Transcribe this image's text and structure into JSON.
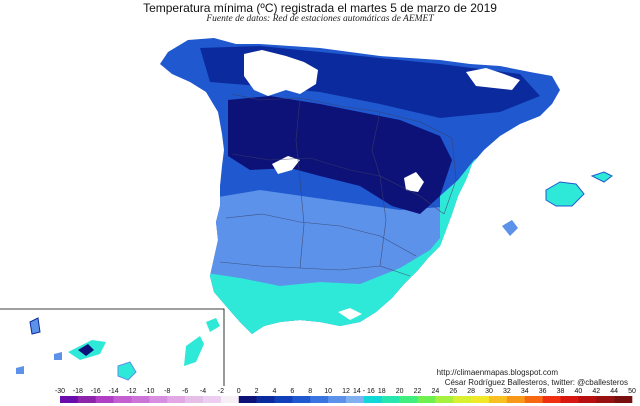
{
  "title": "Temperatura mínima (ºC) registrada el martes 5 de marzo de 2019",
  "subtitle": "Fuente de datos: Red de estaciones automáticas de AEMET",
  "credits": {
    "url": "http://climaenmapas.blogspot.com",
    "author": "César Rodríguez Ballesteros, twitter: @cballesteros"
  },
  "legend": {
    "labels": [
      "-30",
      "-18",
      "-16",
      "-14",
      "-12",
      "-10",
      "-8",
      "-6",
      "-4",
      "-2",
      "0",
      "2",
      "4",
      "6",
      "8",
      "10",
      "12",
      "14 - 16",
      "18",
      "20",
      "22",
      "24",
      "26",
      "28",
      "30",
      "32",
      "34",
      "36",
      "38",
      "40",
      "42",
      "44",
      "50"
    ],
    "colors": [
      "#6a0dad",
      "#8e24aa",
      "#b03fc6",
      "#c35fd1",
      "#cc74d8",
      "#d98fe0",
      "#e2a8e6",
      "#e6bfe9",
      "#eccff0",
      "#f6f0f6",
      "#0d1278",
      "#0b2a9e",
      "#1240b8",
      "#1f58cf",
      "#3a74e0",
      "#5c92ea",
      "#80b0f0",
      "#10d8d8",
      "#28e6b0",
      "#40ee80",
      "#70f050",
      "#a8f040",
      "#d8f030",
      "#f0e828",
      "#f8c020",
      "#f89818",
      "#f86810",
      "#f03010",
      "#d81810",
      "#b81010",
      "#981010",
      "#781010"
    ]
  },
  "colors": {
    "sea": "#ffffff",
    "border_lines": "#3a3f66",
    "snow_white": "#ffffff",
    "deep_cold": "#0d1278",
    "cold": "#1f58cf",
    "cool": "#5c92ea",
    "mild": "#2ee8d8"
  }
}
